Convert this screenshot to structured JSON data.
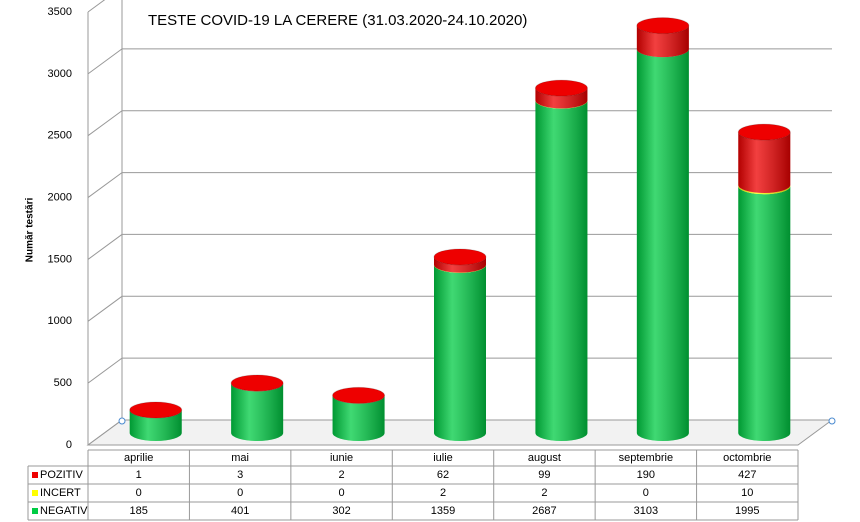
{
  "chart_data": {
    "type": "stacked-cylinder",
    "title": "TESTE COVID-19 LA CERERE (31.03.2020-24.10.2020)",
    "y_label": "Număr testări",
    "categories": [
      "aprilie",
      "mai",
      "iunie",
      "iulie",
      "august",
      "septembrie",
      "octombrie"
    ],
    "series": [
      {
        "name": "POZITIV",
        "color": "#ee0000",
        "values": [
          1,
          3,
          2,
          62,
          99,
          190,
          427
        ]
      },
      {
        "name": "INCERT",
        "color": "#ffff00",
        "values": [
          0,
          0,
          0,
          2,
          2,
          0,
          10
        ]
      },
      {
        "name": "NEGATIV",
        "color": "#00cc44",
        "values": [
          185,
          401,
          302,
          1359,
          2687,
          3103,
          1995
        ]
      }
    ],
    "ylim": [
      0,
      3500
    ],
    "yticks": [
      0,
      500,
      1000,
      1500,
      2000,
      2500,
      3000,
      3500
    ],
    "grid": true
  }
}
